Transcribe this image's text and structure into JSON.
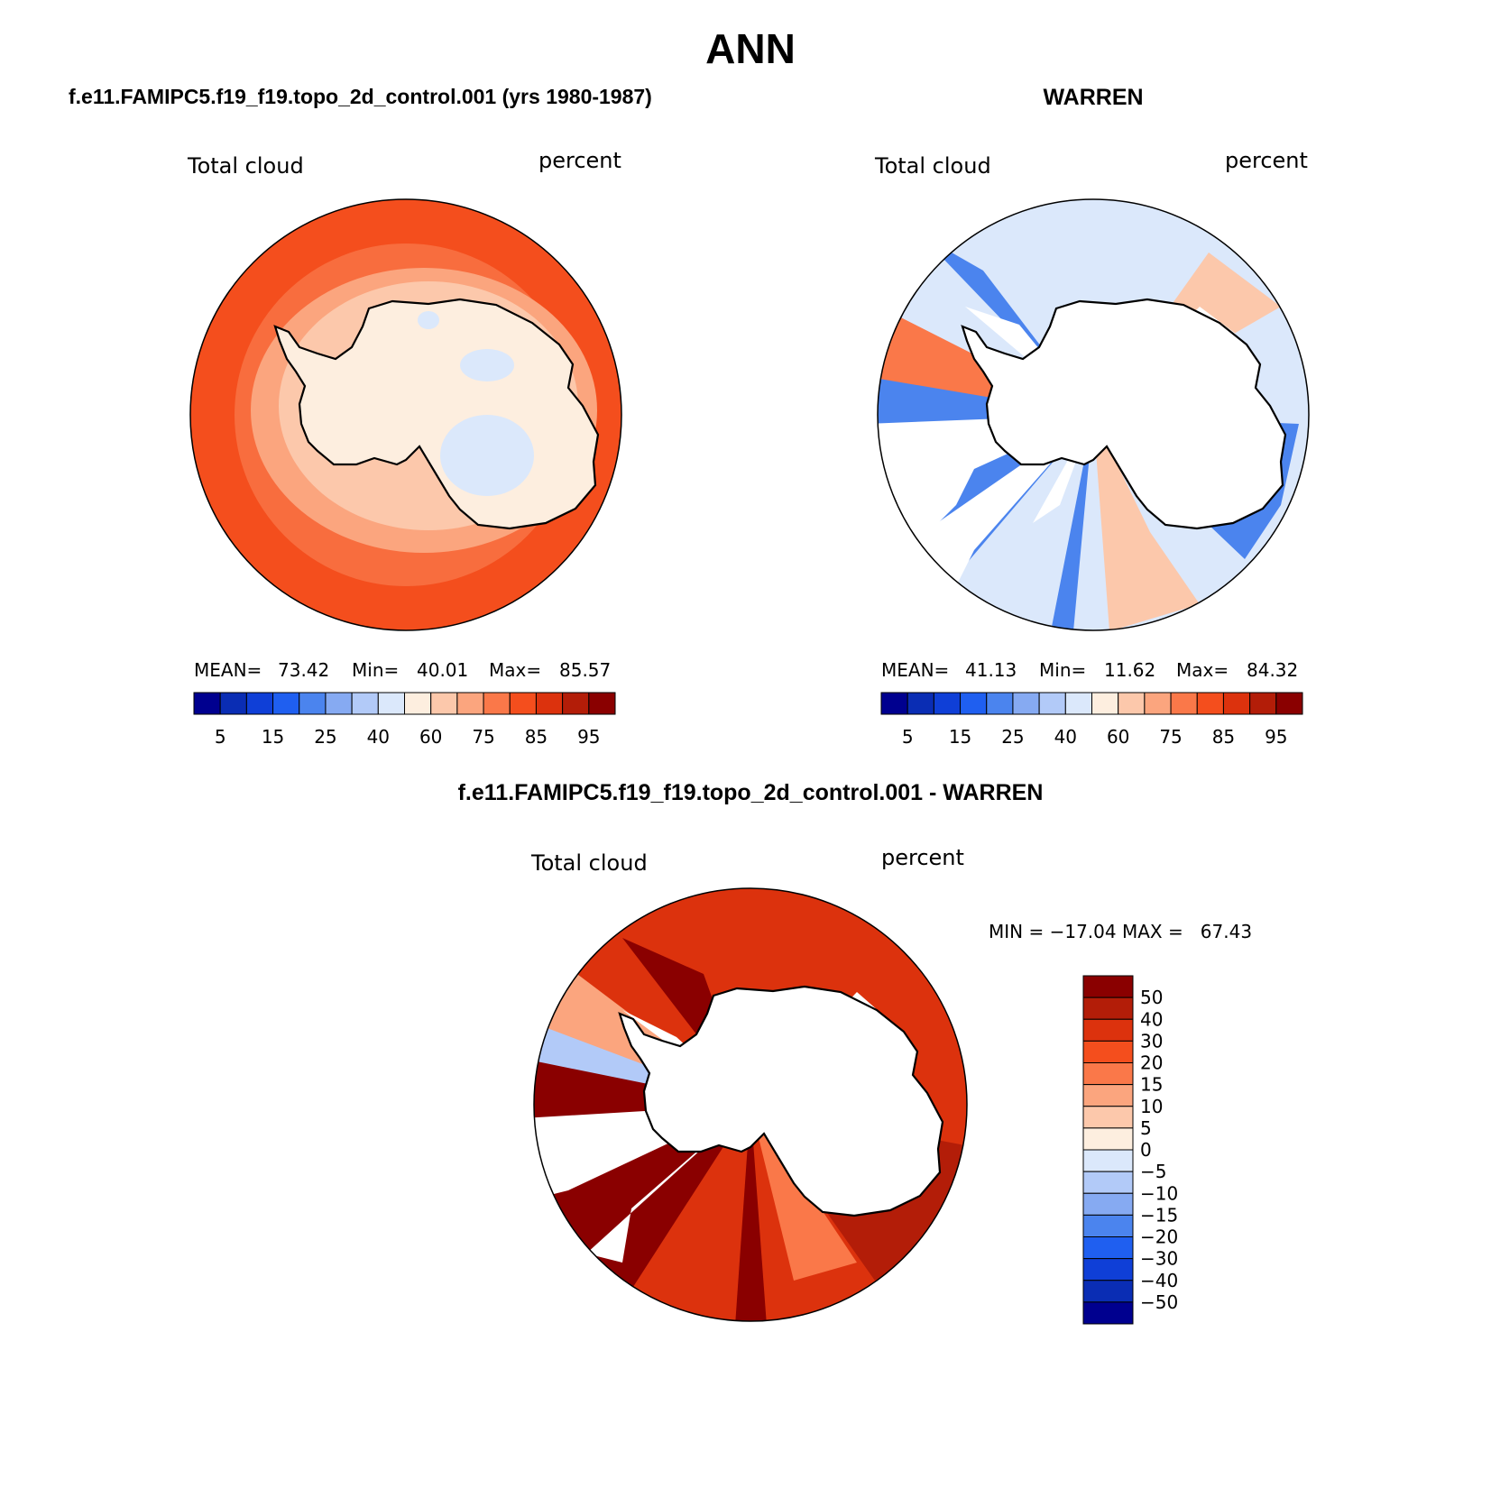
{
  "season": "ANN",
  "panels": [
    {
      "title": "f.e11.FAMIPC5.f19_f19.topo_2d_control.001 (yrs 1980-1987)",
      "variable": "Total cloud",
      "units": "percent",
      "stats": {
        "mean_label": "MEAN=",
        "mean": "73.42",
        "min_label": "Min=",
        "min": "40.01",
        "max_label": "Max=",
        "max": "85.57"
      }
    },
    {
      "title": "WARREN",
      "variable": "Total cloud",
      "units": "percent",
      "stats": {
        "mean_label": "MEAN=",
        "mean": "41.13",
        "min_label": "Min=",
        "min": "11.62",
        "max_label": "Max=",
        "max": "84.32"
      }
    },
    {
      "title": "f.e11.FAMIPC5.f19_f19.topo_2d_control.001 - WARREN",
      "variable": "Total cloud",
      "units": "percent",
      "minmax": "MIN = −17.04 MAX =   67.43"
    }
  ],
  "colorbar_field": {
    "colors": [
      "#00008f",
      "#0a2db4",
      "#0f3fd7",
      "#1f5ff0",
      "#4b84ee",
      "#86aaf2",
      "#b2caf8",
      "#dbe8fb",
      "#fdeedf",
      "#fcc8ab",
      "#fba57e",
      "#fa7849",
      "#f44e1d",
      "#dc320d",
      "#b31d08",
      "#8a0000"
    ],
    "labels": [
      "5",
      "15",
      "25",
      "40",
      "60",
      "75",
      "85",
      "95"
    ]
  },
  "colorbar_diff": {
    "colors": [
      "#8a0000",
      "#b31d08",
      "#dc320d",
      "#f44e1d",
      "#fa7849",
      "#fba57e",
      "#fcc8ab",
      "#fdeedf",
      "#dbe8fb",
      "#b2caf8",
      "#86aaf2",
      "#4b84ee",
      "#1f5ff0",
      "#0f3fd7",
      "#0a2db4",
      "#00008f"
    ],
    "labels": [
      "50",
      "40",
      "30",
      "20",
      "15",
      "10",
      "5",
      "0",
      "−5",
      "−10",
      "−15",
      "−20",
      "−30",
      "−40",
      "−50"
    ]
  }
}
